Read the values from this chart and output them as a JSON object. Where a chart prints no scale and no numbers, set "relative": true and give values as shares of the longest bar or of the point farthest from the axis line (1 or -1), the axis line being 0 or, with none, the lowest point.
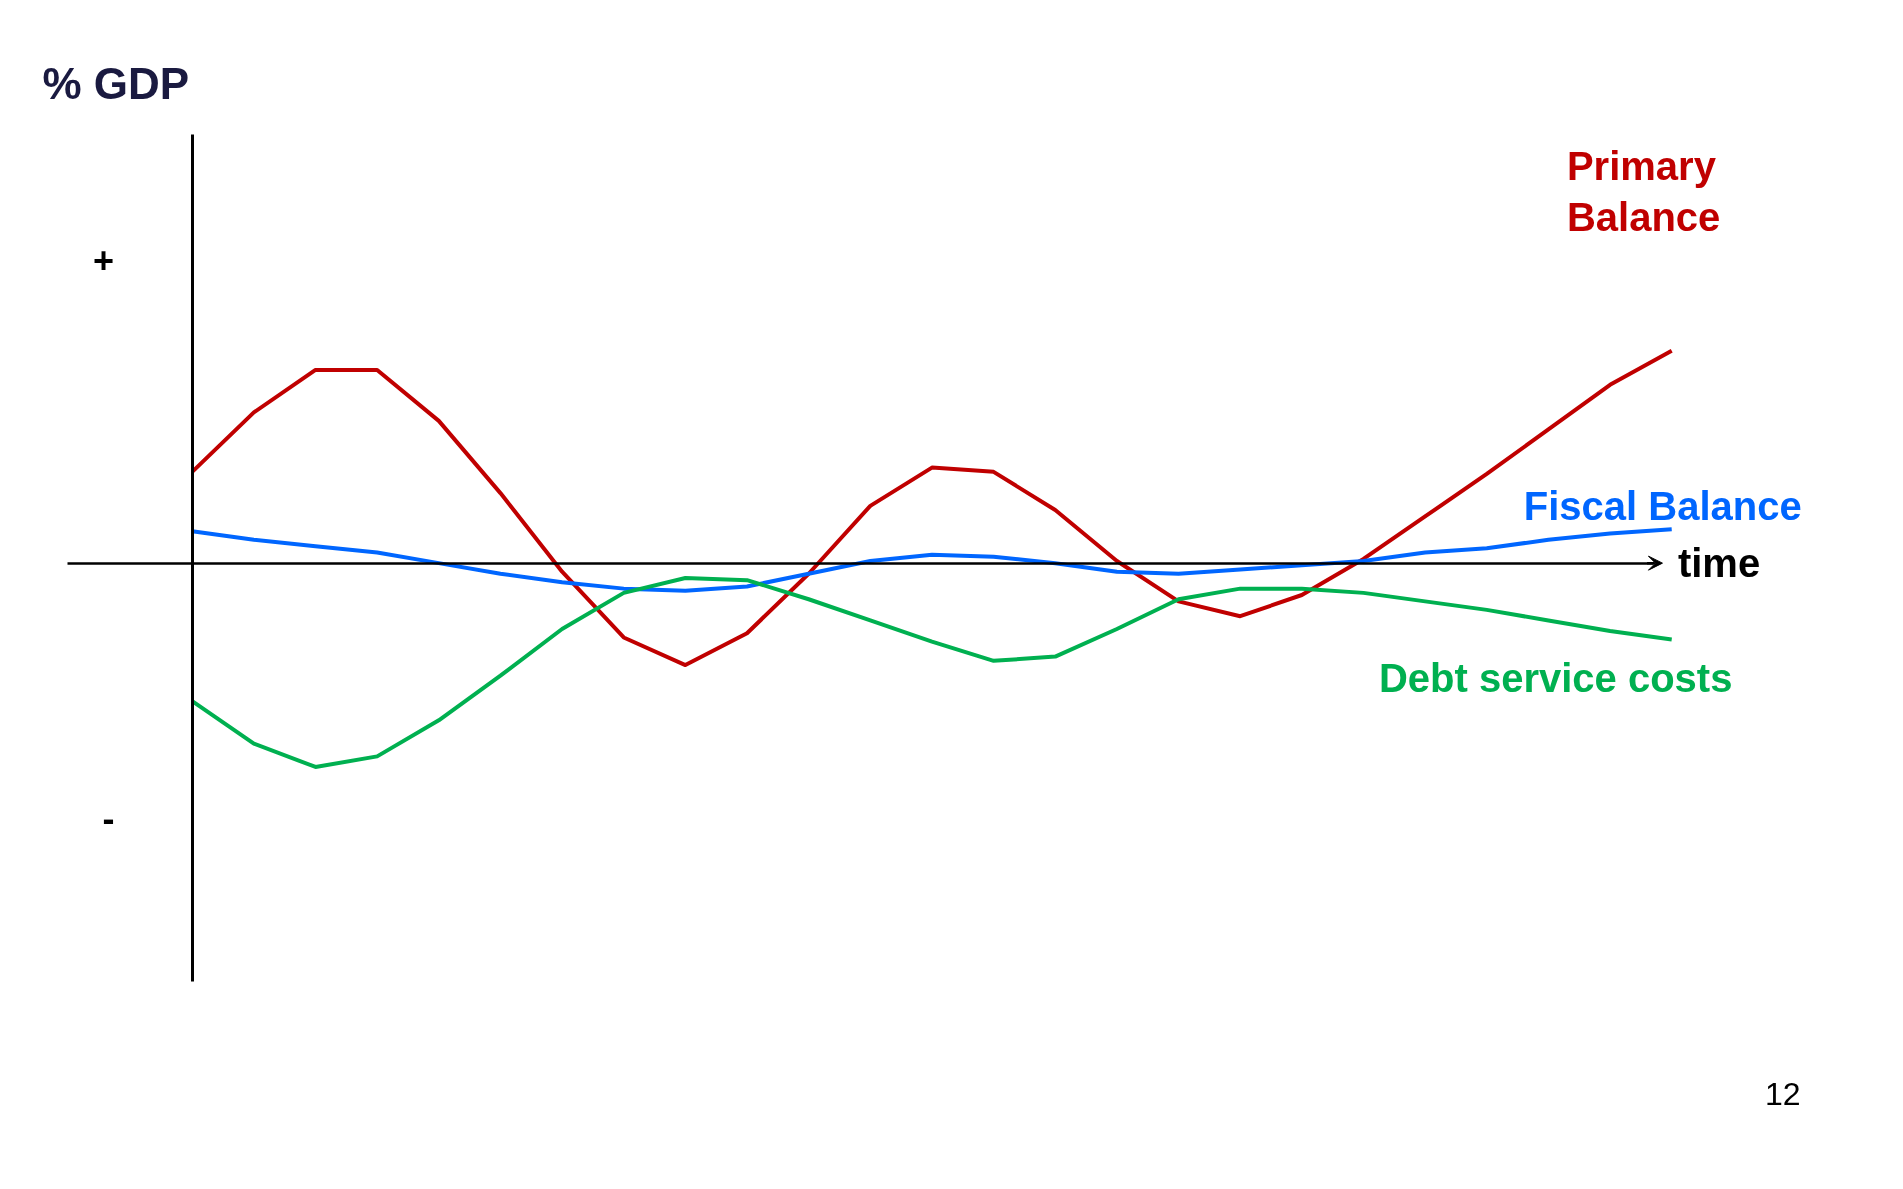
{
  "chart_data": {
    "type": "line",
    "relative": true,
    "xlabel": "time",
    "legend": false,
    "grid": false,
    "marker": "none",
    "line_style": "solid",
    "annotations": [
      "+",
      "-",
      "12",
      "% GDP"
    ],
    "categories": [
      null,
      null,
      null,
      null,
      null,
      null,
      null,
      null,
      null,
      null,
      null,
      null,
      null,
      null,
      null,
      null,
      null,
      null,
      null,
      null,
      null,
      null,
      null,
      null,
      null
    ],
    "series": [
      {
        "name": "Primary\nBalance",
        "color": "#c00000",
        "values": [
          0.43,
          0.71,
          0.91,
          0.91,
          0.67,
          0.33,
          -0.04,
          -0.35,
          -0.48,
          -0.33,
          -0.05,
          0.27,
          0.45,
          0.43,
          0.25,
          0.01,
          -0.18,
          -0.25,
          -0.15,
          0.02,
          0.22,
          0.42,
          0.63,
          0.84,
          1.0
        ]
      },
      {
        "name": "Fiscal Balance",
        "color": "#0066ff",
        "values": [
          0.15,
          0.11,
          0.08,
          0.05,
          0.0,
          -0.05,
          -0.09,
          -0.12,
          -0.13,
          -0.11,
          -0.05,
          0.01,
          0.04,
          0.03,
          0.0,
          -0.04,
          -0.05,
          -0.03,
          -0.01,
          0.01,
          0.05,
          0.07,
          0.11,
          0.14,
          0.16
        ]
      },
      {
        "name": "Debt service costs",
        "color": "#00b050",
        "values": [
          -0.65,
          -0.85,
          -0.96,
          -0.91,
          -0.74,
          -0.53,
          -0.31,
          -0.14,
          -0.07,
          -0.08,
          -0.17,
          -0.27,
          -0.37,
          -0.46,
          -0.44,
          -0.31,
          -0.17,
          -0.12,
          -0.12,
          -0.14,
          -0.18,
          -0.22,
          -0.27,
          -0.32,
          -0.36
        ]
      }
    ]
  }
}
